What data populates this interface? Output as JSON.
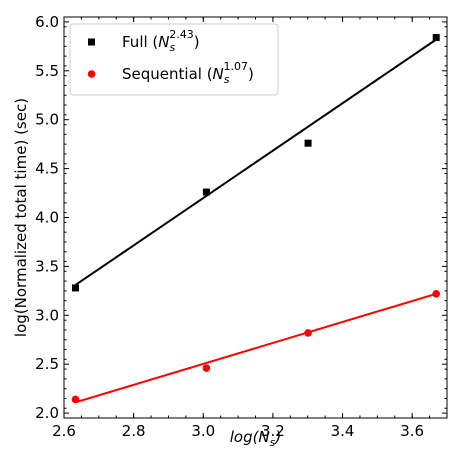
{
  "chart_data": {
    "type": "scatter",
    "xlabel": "log(N_s)",
    "ylabel": "log(Normalized total time) (sec)",
    "xlim": [
      2.6,
      3.7
    ],
    "ylim": [
      1.95,
      6.05
    ],
    "xticks": [
      2.6,
      2.8,
      3.0,
      3.2,
      3.4,
      3.6
    ],
    "xtick_labels": [
      "2.6",
      "2.8",
      "3.0",
      "3.2",
      "3.4",
      "3.6"
    ],
    "yticks": [
      2.0,
      2.5,
      3.0,
      3.5,
      4.0,
      4.5,
      5.0,
      5.5,
      6.0
    ],
    "ytick_labels": [
      "2.0",
      "2.5",
      "3.0",
      "3.5",
      "4.0",
      "4.5",
      "5.0",
      "5.5",
      "6.0"
    ],
    "legend_position": "top-left",
    "series": [
      {
        "name": "Full (N_s^2.43)",
        "legend_main": "Full (",
        "legend_base": "N",
        "legend_sub": "s",
        "legend_exp": "2.43",
        "legend_close": ")",
        "color": "#000000",
        "marker": "square",
        "x": [
          2.633,
          3.009,
          3.301,
          3.669
        ],
        "y": [
          3.28,
          4.26,
          4.76,
          5.84
        ],
        "fit": {
          "x": [
            2.633,
            3.669
          ],
          "y": [
            3.31,
            5.82
          ]
        }
      },
      {
        "name": "Sequential (N_s^1.07)",
        "legend_main": "Sequential (",
        "legend_base": "N",
        "legend_sub": "s",
        "legend_exp": "1.07",
        "legend_close": ")",
        "color": "#ff0000",
        "marker": "circle",
        "x": [
          2.633,
          3.009,
          3.301,
          3.669
        ],
        "y": [
          2.14,
          2.46,
          2.82,
          3.22
        ],
        "fit": {
          "x": [
            2.633,
            3.669
          ],
          "y": [
            2.11,
            3.22
          ]
        }
      }
    ]
  }
}
